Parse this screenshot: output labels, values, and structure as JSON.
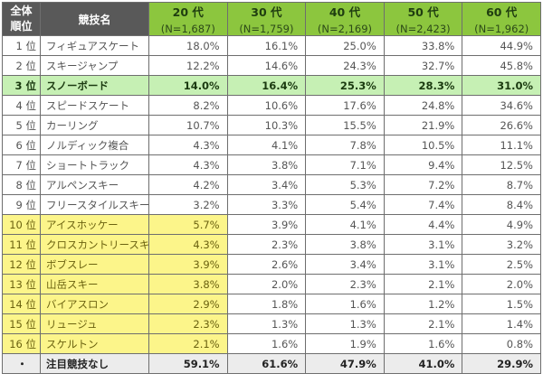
{
  "table": {
    "header": {
      "rank_label_line1": "全体",
      "rank_label_line2": "順位",
      "sport_label": "競技名",
      "age_groups": [
        {
          "label": "20 代",
          "n": "(N=1,687)"
        },
        {
          "label": "30 代",
          "n": "(N=1,759)"
        },
        {
          "label": "40 代",
          "n": "(N=2,169)"
        },
        {
          "label": "50 代",
          "n": "(N=2,423)"
        },
        {
          "label": "60 代",
          "n": "(N=1,962)"
        }
      ]
    },
    "rows": [
      {
        "rank": "1 位",
        "sport": "フィギュアスケート",
        "values": [
          "18.0%",
          "16.1%",
          "25.0%",
          "33.8%",
          "44.9%"
        ],
        "style": "normal"
      },
      {
        "rank": "2 位",
        "sport": "スキージャンプ",
        "values": [
          "12.2%",
          "14.6%",
          "24.3%",
          "32.7%",
          "45.8%"
        ],
        "style": "normal"
      },
      {
        "rank": "3 位",
        "sport": "スノーボード",
        "values": [
          "14.0%",
          "16.4%",
          "25.3%",
          "28.3%",
          "31.0%"
        ],
        "style": "highlight"
      },
      {
        "rank": "4 位",
        "sport": "スピードスケート",
        "values": [
          "8.2%",
          "10.6%",
          "17.6%",
          "24.8%",
          "34.6%"
        ],
        "style": "normal"
      },
      {
        "rank": "5 位",
        "sport": "カーリング",
        "values": [
          "10.7%",
          "10.3%",
          "15.5%",
          "21.9%",
          "26.6%"
        ],
        "style": "normal"
      },
      {
        "rank": "6 位",
        "sport": "ノルディック複合",
        "values": [
          "4.3%",
          "4.1%",
          "7.8%",
          "10.5%",
          "11.1%"
        ],
        "style": "normal"
      },
      {
        "rank": "7 位",
        "sport": "ショートトラック",
        "values": [
          "4.3%",
          "3.8%",
          "7.1%",
          "9.4%",
          "12.5%"
        ],
        "style": "normal"
      },
      {
        "rank": "8 位",
        "sport": "アルペンスキー",
        "values": [
          "4.2%",
          "3.4%",
          "5.3%",
          "7.2%",
          "8.7%"
        ],
        "style": "normal"
      },
      {
        "rank": "9 位",
        "sport": "フリースタイルスキー",
        "values": [
          "3.2%",
          "3.3%",
          "5.4%",
          "7.4%",
          "8.4%"
        ],
        "style": "normal"
      },
      {
        "rank": "10 位",
        "sport": "アイスホッケー",
        "values": [
          "5.7%",
          "3.9%",
          "4.1%",
          "4.4%",
          "4.9%"
        ],
        "style": "yellow"
      },
      {
        "rank": "11 位",
        "sport": "クロスカントリースキー",
        "values": [
          "4.3%",
          "2.3%",
          "3.8%",
          "3.1%",
          "3.2%"
        ],
        "style": "yellow"
      },
      {
        "rank": "12 位",
        "sport": "ボブスレー",
        "values": [
          "3.9%",
          "2.6%",
          "3.4%",
          "3.1%",
          "2.5%"
        ],
        "style": "yellow"
      },
      {
        "rank": "13 位",
        "sport": "山岳スキー",
        "values": [
          "3.8%",
          "2.0%",
          "2.3%",
          "2.1%",
          "2.0%"
        ],
        "style": "yellow"
      },
      {
        "rank": "14 位",
        "sport": "バイアスロン",
        "values": [
          "2.9%",
          "1.8%",
          "1.6%",
          "1.2%",
          "1.5%"
        ],
        "style": "yellow"
      },
      {
        "rank": "15 位",
        "sport": "リュージュ",
        "values": [
          "2.3%",
          "1.3%",
          "1.3%",
          "2.1%",
          "1.4%"
        ],
        "style": "yellow"
      },
      {
        "rank": "16 位",
        "sport": "スケルトン",
        "values": [
          "2.1%",
          "1.6%",
          "1.9%",
          "1.6%",
          "0.8%"
        ],
        "style": "yellow"
      }
    ],
    "total_row": {
      "rank": "・",
      "sport": "注目競技なし",
      "values": [
        "59.1%",
        "61.6%",
        "47.9%",
        "41.0%",
        "29.9%"
      ]
    }
  },
  "colors": {
    "header_dark": "#595959",
    "header_green": "#8cc63e",
    "highlight_green": "#c6f0b4",
    "highlight_yellow": "#fcf58a",
    "total_gray": "#ececec"
  }
}
